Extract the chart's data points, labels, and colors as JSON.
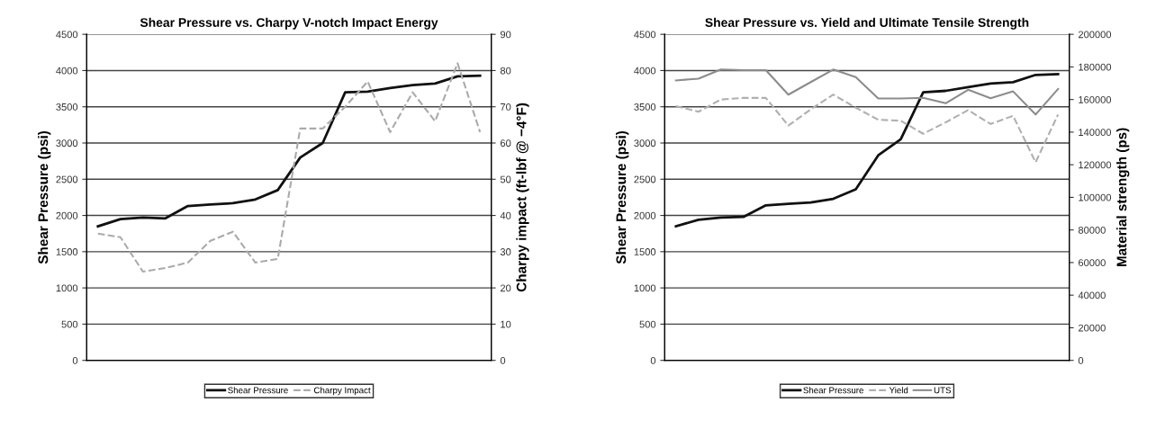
{
  "chart_data": [
    {
      "type": "line",
      "title": "Shear Pressure vs. Charpy V-notch Impact Energy",
      "ylabel": "Shear Pressure (psi)",
      "y2label": "Charpy impact (ft-lbf @ −4°F)",
      "categories": [
        null,
        null,
        null,
        null,
        null,
        null,
        null,
        null,
        null,
        null,
        null,
        null,
        null,
        null,
        null,
        null,
        null,
        null
      ],
      "series": [
        {
          "name": "Shear Pressure",
          "color": "#111111",
          "line_style": "solid",
          "values": [
            1850,
            1950,
            1970,
            1960,
            2130,
            2150,
            2170,
            2220,
            2350,
            2800,
            3000,
            3700,
            3710,
            3760,
            3800,
            3820,
            3920,
            3930
          ]
        },
        {
          "name": "Charpy Impact",
          "color": "#aaaaaa",
          "line_style": "dashed",
          "axis": "y2",
          "values": [
            35,
            34,
            24.5,
            25.5,
            27,
            33,
            35.5,
            27,
            28,
            64,
            64,
            70,
            77,
            63,
            74,
            66,
            82,
            63
          ]
        }
      ],
      "ylim": [
        0,
        4500
      ],
      "yticks": [
        0,
        500,
        1000,
        1500,
        2000,
        2500,
        3000,
        3500,
        4000,
        4500
      ],
      "y2lim": [
        0,
        90
      ],
      "y2ticks": [
        0,
        10,
        20,
        30,
        40,
        50,
        60,
        70,
        80,
        90
      ],
      "grid": "y",
      "legend": "bottom",
      "marker": "none"
    },
    {
      "type": "line",
      "title": "Shear Pressure vs. Yield and Ultimate Tensile Strength",
      "ylabel": "Shear Pressure (psi)",
      "y2label": "Material strength (ps)",
      "categories": [
        null,
        null,
        null,
        null,
        null,
        null,
        null,
        null,
        null,
        null,
        null,
        null,
        null,
        null,
        null,
        null,
        null,
        null
      ],
      "series": [
        {
          "name": "Shear Pressure",
          "color": "#111111",
          "line_style": "solid",
          "values": [
            1850,
            1940,
            1970,
            1980,
            2140,
            2160,
            2180,
            2230,
            2360,
            2830,
            3050,
            3700,
            3720,
            3770,
            3820,
            3840,
            3940,
            3950
          ]
        },
        {
          "name": "Yield",
          "color": "#b0b0b0",
          "line_style": "dashed",
          "axis": "y2",
          "values": [
            156000,
            152500,
            160000,
            161000,
            161000,
            144000,
            154000,
            163000,
            155000,
            147600,
            147000,
            139000,
            146000,
            153500,
            145000,
            150000,
            121500,
            150800
          ]
        },
        {
          "name": "UTS",
          "color": "#8c8c8c",
          "line_style": "solid",
          "axis": "y2",
          "values": [
            171700,
            172800,
            178400,
            178000,
            178000,
            163000,
            170700,
            178400,
            173800,
            160600,
            160600,
            161000,
            157700,
            166000,
            160800,
            165000,
            150800,
            166500
          ]
        }
      ],
      "ylim": [
        0,
        4500
      ],
      "yticks": [
        0,
        500,
        1000,
        1500,
        2000,
        2500,
        3000,
        3500,
        4000,
        4500
      ],
      "y2lim": [
        0,
        200000
      ],
      "y2ticks": [
        0,
        20000,
        40000,
        60000,
        80000,
        100000,
        120000,
        140000,
        160000,
        180000,
        200000
      ],
      "grid": "y",
      "legend": "bottom",
      "marker": "none"
    }
  ]
}
